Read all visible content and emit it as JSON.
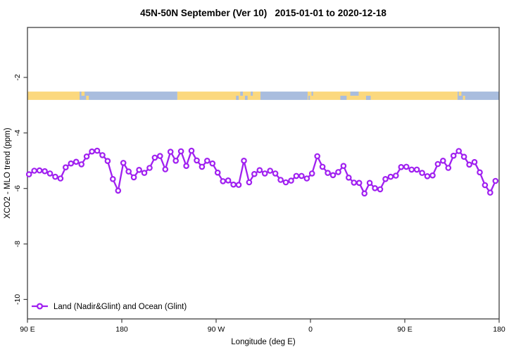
{
  "chart_data": {
    "type": "line",
    "title": "45N-50N September (Ver 10)   2015-01-01 to 2020-12-18",
    "xlabel": "Longitude (deg E)",
    "ylabel": "XCO2 - MLO trend (ppm)",
    "legend": {
      "label": "Land (Nadir&Glint) and Ocean (Glint)"
    },
    "deg_min": 90,
    "deg_max": 540,
    "ylim": [
      -10.7,
      -0.2
    ],
    "grid": "off",
    "legend_position": "bottom-left-inside",
    "x_ticks": [
      {
        "deg": 90,
        "label": "90 E"
      },
      {
        "deg": 180,
        "label": "180"
      },
      {
        "deg": 270,
        "label": "90 W"
      },
      {
        "deg": 360,
        "label": "0"
      },
      {
        "deg": 450,
        "label": "90 E"
      },
      {
        "deg": 540,
        "label": "180"
      }
    ],
    "y_ticks": [
      {
        "value": -2,
        "label": "-2"
      },
      {
        "value": -4,
        "label": "-4"
      },
      {
        "value": -6,
        "label": "-6"
      },
      {
        "value": -8,
        "label": "-8"
      },
      {
        "value": -10,
        "label": "-10"
      }
    ],
    "colors": {
      "line": "#A020F0",
      "marker_fill": "#ffffff",
      "land": "#FBD87E",
      "ocean": "#A9BDDE",
      "axis": "#404040"
    },
    "coastline_strip": {
      "value_top": -2.51,
      "value_bottom": -2.81,
      "segments": [
        {
          "from": 90.0,
          "to": 139.7,
          "type": "land"
        },
        {
          "from": 139.7,
          "to": 233.0,
          "type": "ocean"
        },
        {
          "from": 233.0,
          "to": 312.3,
          "type": "land"
        },
        {
          "from": 312.3,
          "to": 357.3,
          "type": "ocean"
        },
        {
          "from": 357.3,
          "to": 500.3,
          "type": "land"
        },
        {
          "from": 500.3,
          "to": 540.0,
          "type": "ocean"
        }
      ],
      "specks": [
        {
          "from": 141.5,
          "to": 144.5,
          "type": "land",
          "half": "top"
        },
        {
          "from": 146.0,
          "to": 148.5,
          "type": "land",
          "half": "bottom"
        },
        {
          "from": 289.0,
          "to": 291.5,
          "type": "ocean",
          "half": "bottom"
        },
        {
          "from": 293.0,
          "to": 295.5,
          "type": "ocean",
          "half": "top"
        },
        {
          "from": 297.5,
          "to": 300.0,
          "type": "ocean",
          "half": "bottom"
        },
        {
          "from": 303.0,
          "to": 305.0,
          "type": "ocean",
          "half": "top"
        },
        {
          "from": 358.0,
          "to": 359.5,
          "type": "ocean",
          "half": "bottom"
        },
        {
          "from": 361.0,
          "to": 362.5,
          "type": "ocean",
          "half": "top"
        },
        {
          "from": 388.5,
          "to": 394.5,
          "type": "ocean",
          "half": "bottom"
        },
        {
          "from": 398.0,
          "to": 406.0,
          "type": "ocean",
          "half": "top"
        },
        {
          "from": 413.0,
          "to": 417.5,
          "type": "ocean",
          "half": "bottom"
        },
        {
          "from": 501.5,
          "to": 504.0,
          "type": "land",
          "half": "top"
        },
        {
          "from": 505.5,
          "to": 507.5,
          "type": "land",
          "half": "bottom"
        }
      ]
    },
    "series": [
      {
        "name": "Land (Nadir&Glint) and Ocean (Glint)",
        "x_deg_e": [
          91.5,
          96.5,
          101.5,
          106.5,
          111.5,
          116.5,
          121.5,
          126.5,
          131.5,
          136.5,
          141.5,
          146.5,
          151.5,
          156.5,
          161.5,
          166.5,
          171.5,
          176.5,
          181.5,
          186.5,
          191.5,
          196.5,
          201.5,
          206.5,
          211.5,
          216.5,
          221.5,
          226.5,
          231.5,
          236.5,
          241.5,
          246.5,
          251.5,
          256.5,
          261.5,
          266.5,
          271.5,
          276.5,
          281.5,
          286.5,
          291.5,
          296.5,
          301.5,
          306.5,
          311.5,
          316.5,
          321.5,
          326.5,
          331.5,
          336.5,
          341.5,
          346.5,
          351.5,
          356.5,
          361.5,
          366.5,
          371.5,
          376.5,
          381.5,
          386.5,
          391.5,
          396.5,
          401.5,
          406.5,
          411.5,
          416.5,
          421.5,
          426.5,
          431.5,
          436.5,
          441.5,
          446.5,
          451.5,
          456.5,
          461.5,
          466.5,
          471.5,
          476.5,
          481.5,
          486.5,
          491.5,
          496.5,
          501.5,
          506.5,
          511.5,
          516.5,
          521.5,
          526.5,
          531.5,
          536.5
        ],
        "values": [
          -5.49,
          -5.36,
          -5.35,
          -5.38,
          -5.46,
          -5.58,
          -5.64,
          -5.24,
          -5.1,
          -5.04,
          -5.13,
          -4.85,
          -4.67,
          -4.64,
          -4.8,
          -5.01,
          -5.66,
          -6.08,
          -5.08,
          -5.39,
          -5.6,
          -5.33,
          -5.44,
          -5.26,
          -4.89,
          -4.83,
          -5.31,
          -4.68,
          -5.0,
          -4.66,
          -5.19,
          -4.64,
          -4.99,
          -5.22,
          -5.0,
          -5.1,
          -5.43,
          -5.74,
          -5.71,
          -5.86,
          -5.87,
          -5.0,
          -5.78,
          -5.48,
          -5.34,
          -5.46,
          -5.36,
          -5.46,
          -5.69,
          -5.78,
          -5.72,
          -5.55,
          -5.55,
          -5.64,
          -5.46,
          -4.84,
          -5.22,
          -5.44,
          -5.52,
          -5.41,
          -5.19,
          -5.61,
          -5.79,
          -5.8,
          -6.18,
          -5.8,
          -5.99,
          -6.03,
          -5.66,
          -5.58,
          -5.54,
          -5.23,
          -5.22,
          -5.32,
          -5.32,
          -5.44,
          -5.56,
          -5.53,
          -5.12,
          -5.0,
          -5.26,
          -4.82,
          -4.65,
          -4.86,
          -5.14,
          -5.05,
          -5.42,
          -5.88,
          -6.15,
          -5.73
        ]
      }
    ]
  }
}
